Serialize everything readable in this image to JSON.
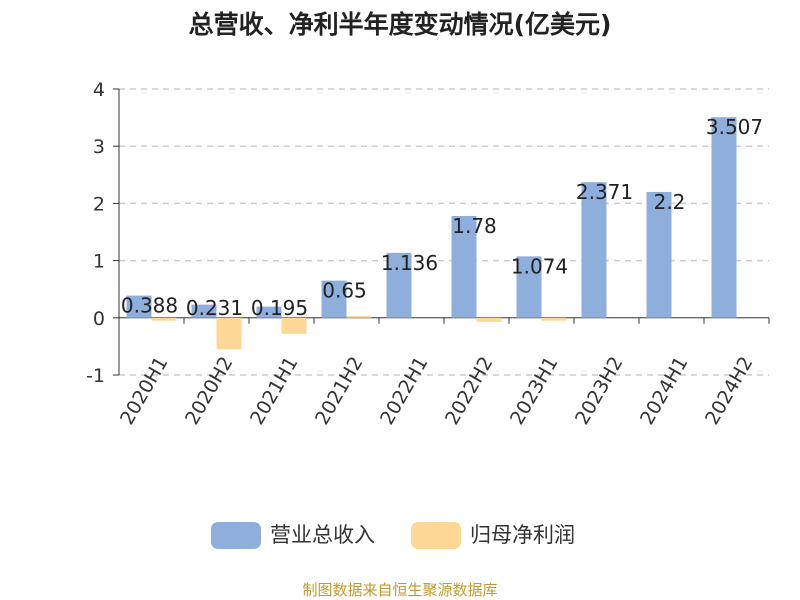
{
  "chart_data": {
    "type": "bar",
    "title": "总营收、净利半年度变动情况(亿美元)",
    "categories": [
      "2020H1",
      "2020H2",
      "2021H1",
      "2021H2",
      "2022H1",
      "2022H2",
      "2023H1",
      "2023H2",
      "2024H1",
      "2024H2"
    ],
    "series": [
      {
        "name": "营业总收入",
        "color": "#8eaedb",
        "values": [
          0.388,
          0.231,
          0.195,
          0.65,
          1.136,
          1.78,
          1.074,
          2.371,
          2.2,
          3.507
        ],
        "labels": [
          "0.388",
          "0.231",
          "0.195",
          "0.65",
          "1.136",
          "1.78",
          "1.074",
          "2.371",
          "2.2",
          "3.507"
        ]
      },
      {
        "name": "归母净利润",
        "color": "#fdd795",
        "values": [
          -0.05,
          -0.55,
          -0.28,
          0.03,
          0.0,
          -0.07,
          -0.05,
          0.0,
          0.0,
          0.0
        ]
      }
    ],
    "ylim": [
      -1,
      4
    ],
    "yticks": [
      -1,
      0,
      1,
      2,
      3,
      4
    ],
    "grid": true,
    "legend_position": "bottom"
  },
  "source": "制图数据来自恒生聚源数据库",
  "colors": {
    "source": "#c39a2e",
    "grid": "#cccccc",
    "axis": "#333333"
  }
}
